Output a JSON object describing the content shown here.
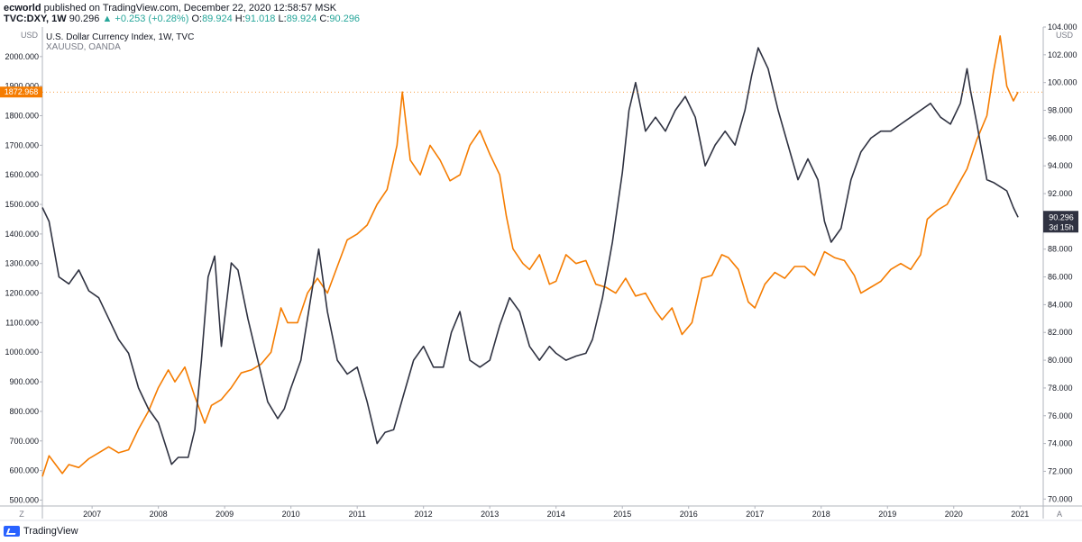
{
  "header": {
    "author": "ecworld",
    "published": "published on TradingView.com, December 22, 2020 12:58:57 MSK",
    "symbol": "TVC:DXY, 1W",
    "price": "90.296",
    "change_arrow": "▲",
    "change": "+0.253 (+0.28%)",
    "o_label": "O:",
    "o_value": "89.924",
    "h_label": "H:",
    "h_value": "91.018",
    "l_label": "L:",
    "l_value": "89.924",
    "c_label": "C:",
    "c_value": "90.296"
  },
  "legend": {
    "primary": "U.S. Dollar Currency Index, 1W, TVC",
    "secondary": "XAUUSD, OANDA"
  },
  "scale_labels": {
    "left_unit": "USD",
    "right_unit": "USD",
    "left_corner": "Z",
    "right_corner": "A",
    "gold_last": "1872.968",
    "dxy_last": "90.296",
    "dxy_countdown": "3d 15h"
  },
  "footer": {
    "brand": "TradingView"
  },
  "colors": {
    "dxy": "#2f3241",
    "gold": "#f57c00",
    "axis_text": "#131722",
    "grid": "#e0e3eb",
    "dxy_badge": "#2f3241",
    "gold_badge": "#f57c00"
  },
  "chart_data": {
    "type": "line",
    "x_label": "",
    "x_ticks": [
      "2007",
      "2008",
      "2009",
      "2010",
      "2011",
      "2012",
      "2013",
      "2014",
      "2015",
      "2016",
      "2017",
      "2018",
      "2019",
      "2020",
      "2021"
    ],
    "left_axis": {
      "ticks": [
        "500.000",
        "600.000",
        "700.000",
        "800.000",
        "900.000",
        "1000.000",
        "1100.000",
        "1200.000",
        "1300.000",
        "1400.000",
        "1500.000",
        "1600.000",
        "1700.000",
        "1800.000",
        "1900.000",
        "2000.000"
      ],
      "range": [
        480,
        2100
      ]
    },
    "right_axis": {
      "ticks": [
        "70.000",
        "72.000",
        "74.000",
        "76.000",
        "78.000",
        "80.000",
        "82.000",
        "84.000",
        "86.000",
        "88.000",
        "90.000",
        "92.000",
        "94.000",
        "96.000",
        "98.000",
        "100.000",
        "102.000",
        "104.000"
      ],
      "range": [
        69.5,
        104
      ]
    },
    "series": [
      {
        "name": "U.S. Dollar Currency Index, 1W, TVC",
        "axis": "right",
        "x": [
          2006.25,
          2006.35,
          2006.5,
          2006.65,
          2006.8,
          2006.95,
          2007.1,
          2007.25,
          2007.4,
          2007.55,
          2007.7,
          2007.85,
          2008.0,
          2008.1,
          2008.2,
          2008.3,
          2008.45,
          2008.55,
          2008.65,
          2008.75,
          2008.85,
          2008.95,
          2009.1,
          2009.2,
          2009.35,
          2009.5,
          2009.65,
          2009.8,
          2009.9,
          2010.0,
          2010.15,
          2010.3,
          2010.42,
          2010.55,
          2010.7,
          2010.85,
          2011.0,
          2011.15,
          2011.3,
          2011.42,
          2011.55,
          2011.7,
          2011.85,
          2012.0,
          2012.15,
          2012.3,
          2012.42,
          2012.55,
          2012.7,
          2012.85,
          2013.0,
          2013.15,
          2013.3,
          2013.45,
          2013.6,
          2013.75,
          2013.9,
          2014.0,
          2014.15,
          2014.3,
          2014.45,
          2014.55,
          2014.7,
          2014.85,
          2015.0,
          2015.1,
          2015.2,
          2015.35,
          2015.5,
          2015.65,
          2015.8,
          2015.95,
          2016.1,
          2016.25,
          2016.4,
          2016.55,
          2016.7,
          2016.85,
          2016.95,
          2017.05,
          2017.2,
          2017.35,
          2017.5,
          2017.65,
          2017.8,
          2017.95,
          2018.05,
          2018.15,
          2018.3,
          2018.45,
          2018.6,
          2018.75,
          2018.9,
          2019.05,
          2019.2,
          2019.35,
          2019.5,
          2019.65,
          2019.8,
          2019.95,
          2020.1,
          2020.2,
          2020.25,
          2020.35,
          2020.5,
          2020.6,
          2020.7,
          2020.8,
          2020.9,
          2020.97
        ],
        "values": [
          91.0,
          90.0,
          86.0,
          85.5,
          86.5,
          85.0,
          84.5,
          83.0,
          81.5,
          80.5,
          78.0,
          76.5,
          75.5,
          74.0,
          72.5,
          73.0,
          73.0,
          75.0,
          80.0,
          86.0,
          87.5,
          81.0,
          87.0,
          86.5,
          83.0,
          80.0,
          77.0,
          75.8,
          76.5,
          78.0,
          80.0,
          84.5,
          88.0,
          83.5,
          80.0,
          79.0,
          79.5,
          77.0,
          74.0,
          74.8,
          75.0,
          77.5,
          80.0,
          81.0,
          79.5,
          79.5,
          82.0,
          83.5,
          80.0,
          79.5,
          80.0,
          82.5,
          84.5,
          83.5,
          81.0,
          80.0,
          81.0,
          80.5,
          80.0,
          80.3,
          80.5,
          81.5,
          84.5,
          88.5,
          93.5,
          98.0,
          100.0,
          96.5,
          97.5,
          96.5,
          98.0,
          99.0,
          97.5,
          94.0,
          95.5,
          96.5,
          95.5,
          98.0,
          100.5,
          102.5,
          101.0,
          98.0,
          95.5,
          93.0,
          94.5,
          93.0,
          90.0,
          88.5,
          89.5,
          93.0,
          95.0,
          96.0,
          96.5,
          96.5,
          97.0,
          97.5,
          98.0,
          98.5,
          97.5,
          97.0,
          98.5,
          101.0,
          99.5,
          97.0,
          93.0,
          92.8,
          92.5,
          92.2,
          91.0,
          90.3
        ]
      },
      {
        "name": "XAUUSD, OANDA",
        "axis": "left",
        "x": [
          2006.25,
          2006.35,
          2006.45,
          2006.55,
          2006.65,
          2006.8,
          2006.95,
          2007.1,
          2007.25,
          2007.4,
          2007.55,
          2007.7,
          2007.85,
          2008.0,
          2008.15,
          2008.25,
          2008.4,
          2008.55,
          2008.7,
          2008.8,
          2008.95,
          2009.1,
          2009.25,
          2009.4,
          2009.55,
          2009.7,
          2009.85,
          2009.95,
          2010.1,
          2010.25,
          2010.4,
          2010.55,
          2010.7,
          2010.85,
          2011.0,
          2011.15,
          2011.3,
          2011.45,
          2011.6,
          2011.68,
          2011.8,
          2011.95,
          2012.1,
          2012.25,
          2012.4,
          2012.55,
          2012.7,
          2012.85,
          2013.0,
          2013.15,
          2013.25,
          2013.35,
          2013.5,
          2013.6,
          2013.75,
          2013.9,
          2014.0,
          2014.15,
          2014.3,
          2014.45,
          2014.6,
          2014.75,
          2014.9,
          2015.05,
          2015.2,
          2015.35,
          2015.5,
          2015.6,
          2015.75,
          2015.9,
          2016.05,
          2016.2,
          2016.35,
          2016.5,
          2016.6,
          2016.75,
          2016.9,
          2017.0,
          2017.15,
          2017.3,
          2017.45,
          2017.6,
          2017.75,
          2017.9,
          2018.05,
          2018.2,
          2018.35,
          2018.5,
          2018.6,
          2018.75,
          2018.9,
          2019.05,
          2019.2,
          2019.35,
          2019.5,
          2019.6,
          2019.75,
          2019.9,
          2020.05,
          2020.2,
          2020.35,
          2020.5,
          2020.6,
          2020.7,
          2020.8,
          2020.9,
          2020.97
        ],
        "values": [
          580,
          650,
          620,
          590,
          620,
          610,
          640,
          660,
          680,
          660,
          670,
          740,
          800,
          880,
          940,
          900,
          950,
          850,
          760,
          820,
          840,
          880,
          930,
          940,
          960,
          1000,
          1150,
          1100,
          1100,
          1200,
          1250,
          1200,
          1290,
          1380,
          1400,
          1430,
          1500,
          1550,
          1700,
          1880,
          1650,
          1600,
          1700,
          1650,
          1580,
          1600,
          1700,
          1750,
          1670,
          1600,
          1460,
          1350,
          1300,
          1280,
          1330,
          1230,
          1240,
          1330,
          1300,
          1310,
          1230,
          1220,
          1200,
          1250,
          1190,
          1200,
          1140,
          1110,
          1150,
          1060,
          1100,
          1250,
          1260,
          1330,
          1320,
          1280,
          1170,
          1150,
          1230,
          1270,
          1250,
          1290,
          1290,
          1260,
          1340,
          1320,
          1310,
          1260,
          1200,
          1220,
          1240,
          1280,
          1300,
          1280,
          1330,
          1450,
          1480,
          1500,
          1560,
          1620,
          1720,
          1800,
          1950,
          2070,
          1900,
          1850,
          1880
        ]
      }
    ]
  }
}
